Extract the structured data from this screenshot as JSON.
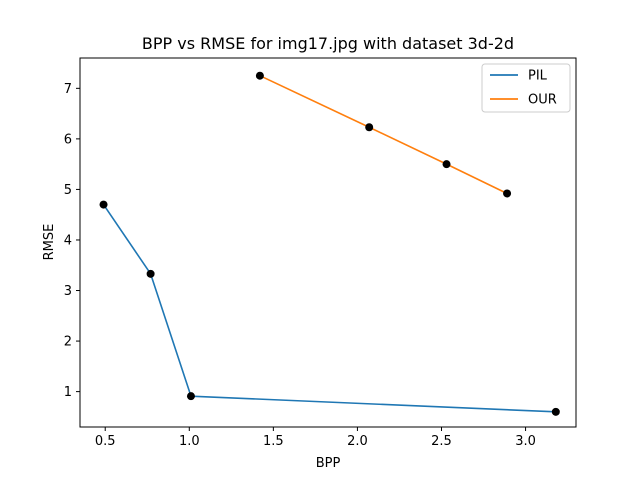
{
  "chart_data": {
    "type": "line",
    "title": "BPP vs RMSE for img17.jpg with dataset 3d-2d",
    "xlabel": "BPP",
    "ylabel": "RMSE",
    "xlim": [
      0.35,
      3.3
    ],
    "ylim": [
      0.3,
      7.6
    ],
    "xticks": [
      0.5,
      1.0,
      1.5,
      2.0,
      2.5,
      3.0
    ],
    "xtick_labels": [
      "0.5",
      "1.0",
      "1.5",
      "2.0",
      "2.5",
      "3.0"
    ],
    "yticks": [
      1,
      2,
      3,
      4,
      5,
      6,
      7
    ],
    "ytick_labels": [
      "1",
      "2",
      "3",
      "4",
      "5",
      "6",
      "7"
    ],
    "grid": false,
    "legend_position": "top-right",
    "markers": "black dots",
    "series": [
      {
        "name": "PIL",
        "color": "#1f77b4",
        "x": [
          0.49,
          0.77,
          1.01,
          3.18
        ],
        "y": [
          4.7,
          3.33,
          0.91,
          0.6
        ]
      },
      {
        "name": "OUR",
        "color": "#ff7f0e",
        "x": [
          1.42,
          2.07,
          2.53,
          2.89
        ],
        "y": [
          7.25,
          6.23,
          5.5,
          4.92
        ]
      }
    ]
  }
}
